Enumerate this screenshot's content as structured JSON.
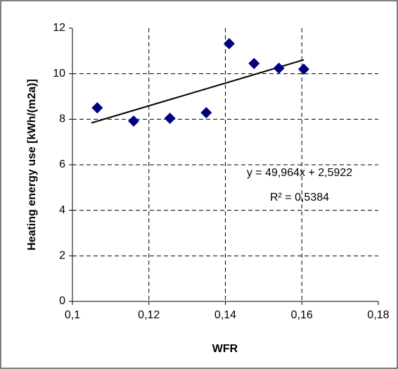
{
  "chart_data": {
    "type": "scatter",
    "x_label": "WFR",
    "y_label": "Heating energy use [kWh/(m2a)]",
    "x": [
      0.1065,
      0.116,
      0.1255,
      0.135,
      0.141,
      0.1475,
      0.154,
      0.1605
    ],
    "series": [
      {
        "color": "#000080",
        "values": [
          8.5,
          7.92,
          8.04,
          8.29,
          11.32,
          10.45,
          10.24,
          10.2
        ]
      }
    ],
    "trendline": {
      "x": [
        0.105,
        0.1605
      ],
      "values": [
        7.84,
        10.61
      ],
      "color": "#000000"
    },
    "annotations": [
      "y = 49,964x + 2,5922",
      "R² = 0,5384"
    ],
    "xlim": [
      0.1,
      0.18
    ],
    "xticks": [
      {
        "value": 0.1,
        "label": "0,1"
      },
      {
        "value": 0.12,
        "label": "0,12"
      },
      {
        "value": 0.14,
        "label": "0,14"
      },
      {
        "value": 0.16,
        "label": "0,16"
      },
      {
        "value": 0.18,
        "label": "0,18"
      }
    ],
    "ylim": [
      0,
      12
    ],
    "yticks": [
      0,
      2,
      4,
      6,
      8,
      10,
      12
    ],
    "grid": true
  }
}
